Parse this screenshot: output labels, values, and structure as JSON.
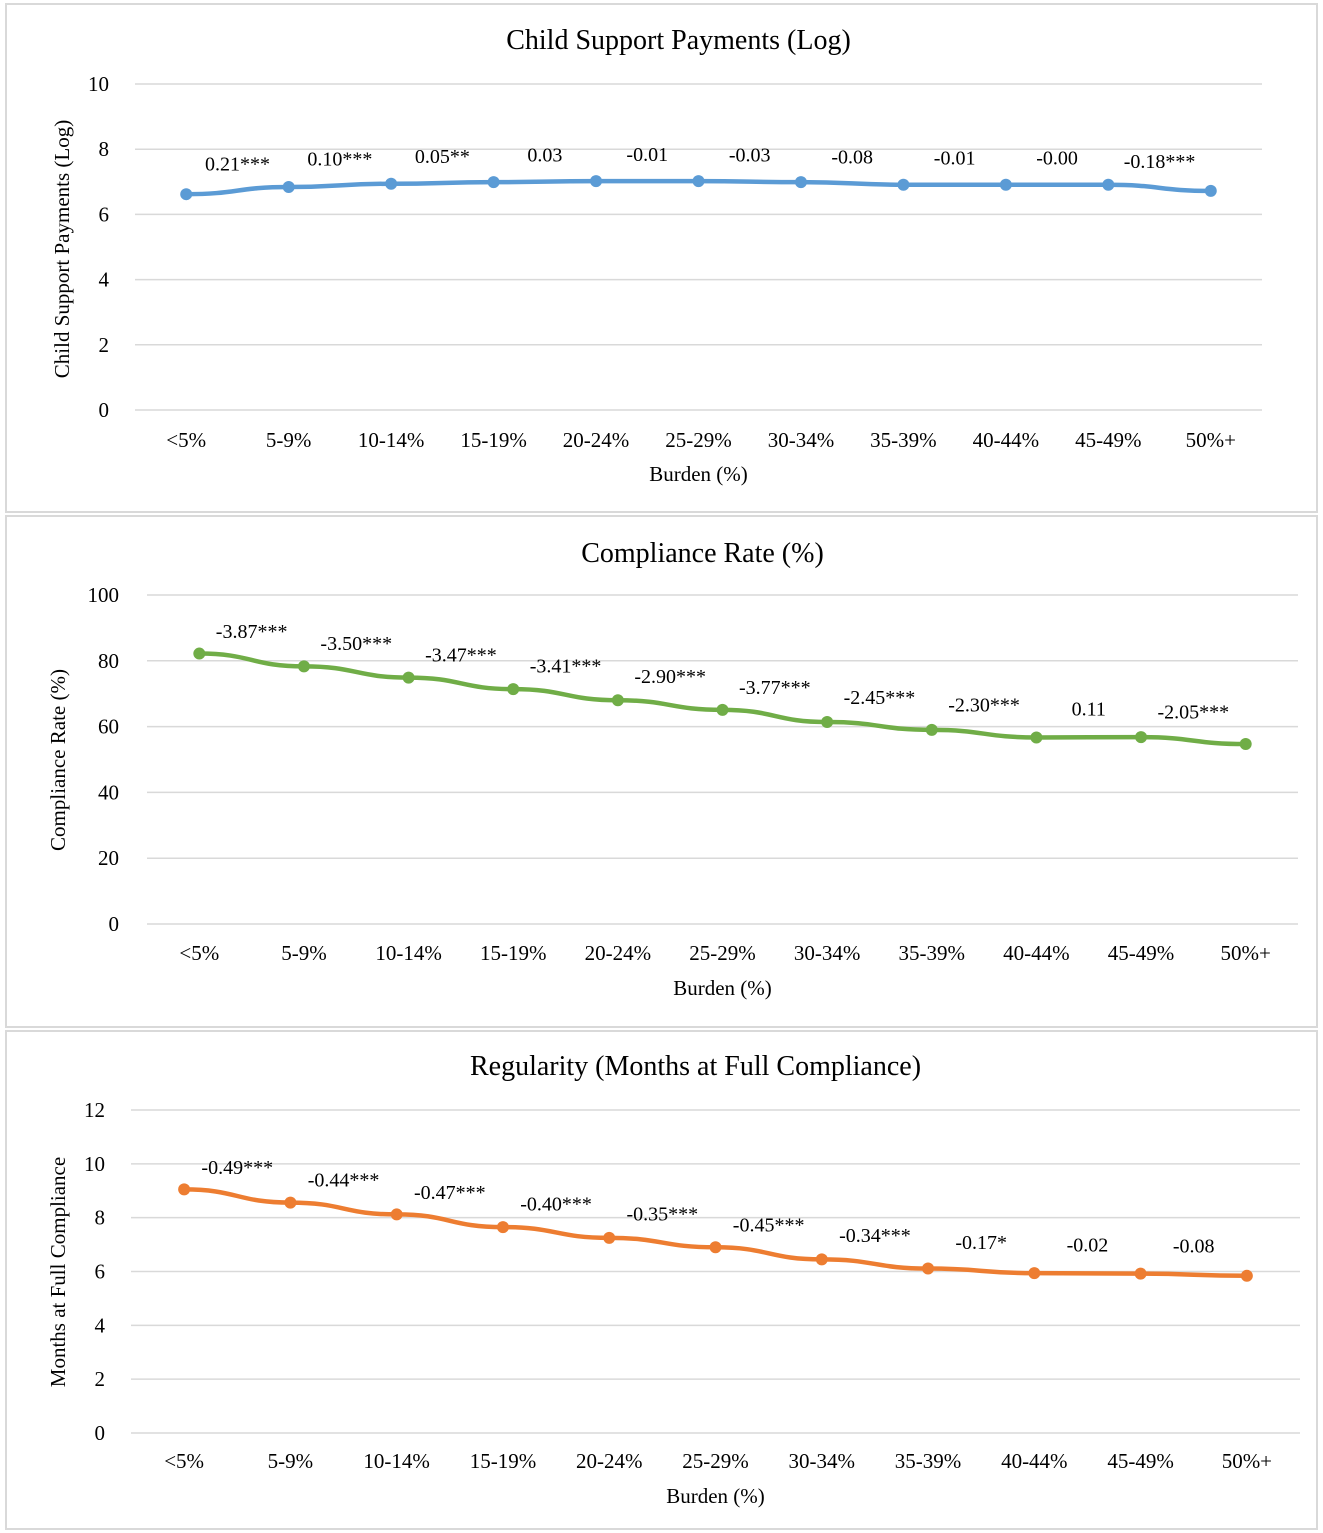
{
  "chart_data": [
    {
      "type": "line",
      "title": "Child Support Payments (Log)",
      "xlabel": "Burden (%)",
      "ylabel": "Child Support Payments (Log)",
      "ylim": [
        0,
        10
      ],
      "yticks": [
        0,
        2,
        4,
        6,
        8,
        10
      ],
      "categories": [
        "<5%",
        "5-9%",
        "10-14%",
        "15-19%",
        "20-24%",
        "25-29%",
        "30-34%",
        "35-39%",
        "40-44%",
        "45-49%",
        "50%+"
      ],
      "series": [
        {
          "color": "#5b9bd5",
          "values": [
            6.62,
            6.84,
            6.94,
            6.99,
            7.02,
            7.02,
            6.99,
            6.91,
            6.91,
            6.91,
            6.72
          ]
        }
      ],
      "annotations": [
        "0.21***",
        "0.10***",
        "0.05**",
        "0.03",
        "-0.01",
        "-0.03",
        "-0.08",
        "-0.01",
        "-0.00",
        "-0.18***"
      ],
      "grid": true,
      "legend": "none"
    },
    {
      "type": "line",
      "title": "Compliance Rate (%)",
      "xlabel": "Burden (%)",
      "ylabel": "Compliance Rate (%)",
      "ylim": [
        0,
        100
      ],
      "yticks": [
        0,
        20,
        40,
        60,
        80,
        100
      ],
      "categories": [
        "<5%",
        "5-9%",
        "10-14%",
        "15-19%",
        "20-24%",
        "25-29%",
        "30-34%",
        "35-39%",
        "40-44%",
        "45-49%",
        "50%+"
      ],
      "series": [
        {
          "color": "#70ad47",
          "values": [
            82.2,
            78.3,
            74.9,
            71.4,
            68.0,
            65.1,
            61.4,
            59.0,
            56.7,
            56.8,
            54.7
          ]
        }
      ],
      "annotations": [
        "-3.87***",
        "-3.50***",
        "-3.47***",
        "-3.41***",
        "-2.90***",
        "-3.77***",
        "-2.45***",
        "-2.30***",
        "0.11",
        "-2.05***"
      ],
      "grid": true,
      "legend": "none"
    },
    {
      "type": "line",
      "title": "Regularity (Months at Full Compliance)",
      "xlabel": "Burden (%)",
      "ylabel": "Months at Full Compliance",
      "ylim": [
        0,
        12
      ],
      "yticks": [
        0,
        2,
        4,
        6,
        8,
        10,
        12
      ],
      "categories": [
        "<5%",
        "5-9%",
        "10-14%",
        "15-19%",
        "20-24%",
        "25-29%",
        "30-34%",
        "35-39%",
        "40-44%",
        "45-49%",
        "50%+"
      ],
      "series": [
        {
          "color": "#ed7d31",
          "values": [
            9.05,
            8.56,
            8.12,
            7.65,
            7.25,
            6.9,
            6.45,
            6.11,
            5.94,
            5.92,
            5.84
          ]
        }
      ],
      "annotations": [
        "-0.49***",
        "-0.44***",
        "-0.47***",
        "-0.40***",
        "-0.35***",
        "-0.45***",
        "-0.34***",
        "-0.17*",
        "-0.02",
        "-0.08"
      ],
      "grid": true,
      "legend": "none"
    }
  ]
}
